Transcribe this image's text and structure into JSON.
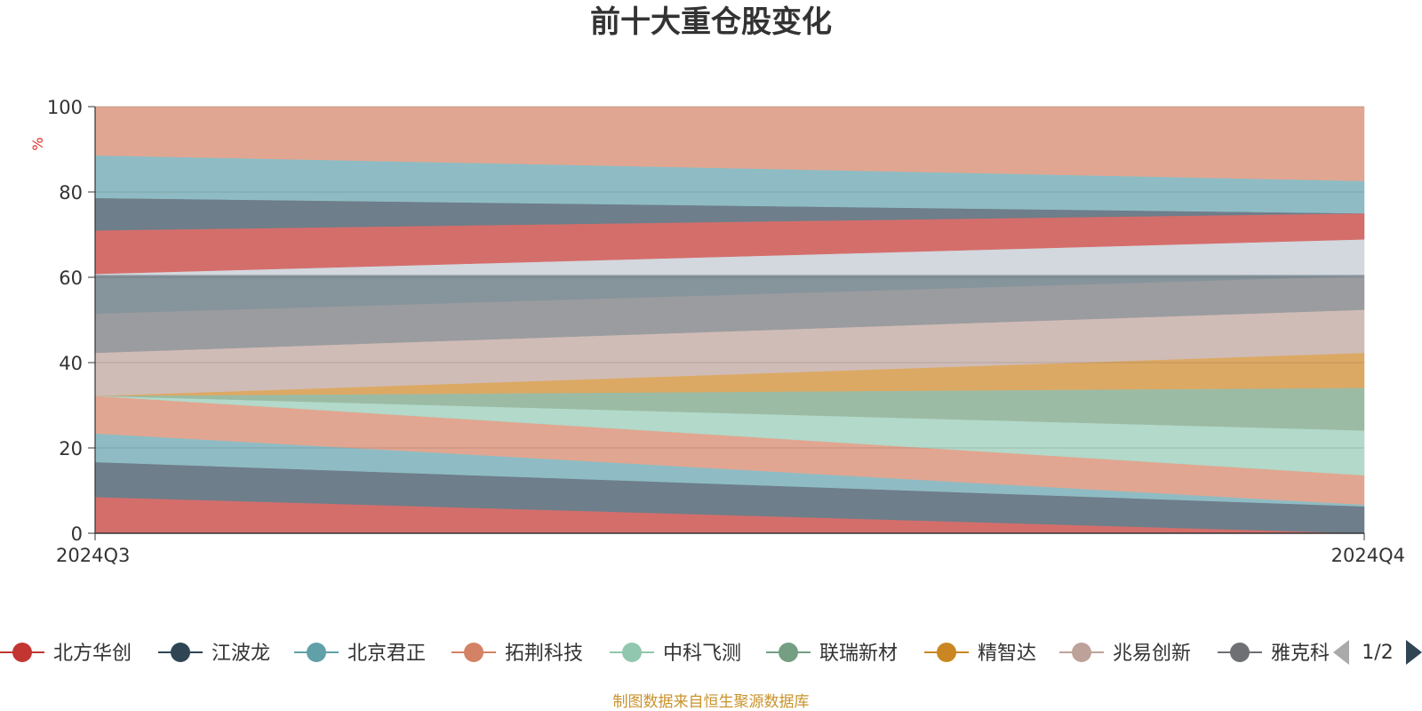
{
  "chart_data": {
    "type": "area",
    "title": "前十大重仓股变化",
    "ylabel": "%",
    "ylim": [
      0,
      100
    ],
    "yticks": [
      "0",
      "20",
      "40",
      "60",
      "80",
      "100"
    ],
    "x": [
      "2024Q3",
      "2024Q4"
    ],
    "stack_boundaries": [
      [
        0,
        0
      ],
      [
        8.5,
        0
      ],
      [
        16.7,
        6.3
      ],
      [
        23.4,
        6.7
      ],
      [
        32.2,
        13.6
      ],
      [
        32.2,
        24.1
      ],
      [
        32.2,
        34.1
      ],
      [
        32.2,
        42.3
      ],
      [
        42.3,
        52.4
      ],
      [
        51.5,
        60.3
      ],
      [
        60.6,
        60.6
      ],
      [
        60.8,
        68.9
      ],
      [
        71.0,
        75.0
      ],
      [
        78.6,
        75.0
      ],
      [
        88.6,
        82.6
      ],
      [
        100,
        100
      ]
    ],
    "band_colors": [
      "#d46e6b",
      "#6e7e8a",
      "#8fbcc4",
      "#e1a691",
      "#b2d9c9",
      "#9cbba4",
      "#dca965",
      "#d0bcb6",
      "#9b9ca0",
      "#86949b",
      "#d3d7de",
      "#d46e6b",
      "#6e7e8a",
      "#8fbcc4",
      "#e1a691"
    ],
    "legend": [
      {
        "name": "北方华创",
        "color": "#c23531"
      },
      {
        "name": "江波龙",
        "color": "#2f4554"
      },
      {
        "name": "北京君正",
        "color": "#61a0a8"
      },
      {
        "name": "拓荆科技",
        "color": "#d48265"
      },
      {
        "name": "中科飞测",
        "color": "#91c7ae"
      },
      {
        "name": "联瑞新材",
        "color": "#749f83"
      },
      {
        "name": "精智达",
        "color": "#ca8622"
      },
      {
        "name": "兆易创新",
        "color": "#bda29a"
      },
      {
        "name": "雅克科",
        "color": "#6e7074"
      }
    ],
    "legend_page": "1/2",
    "source": "制图数据来自恒生聚源数据库"
  }
}
